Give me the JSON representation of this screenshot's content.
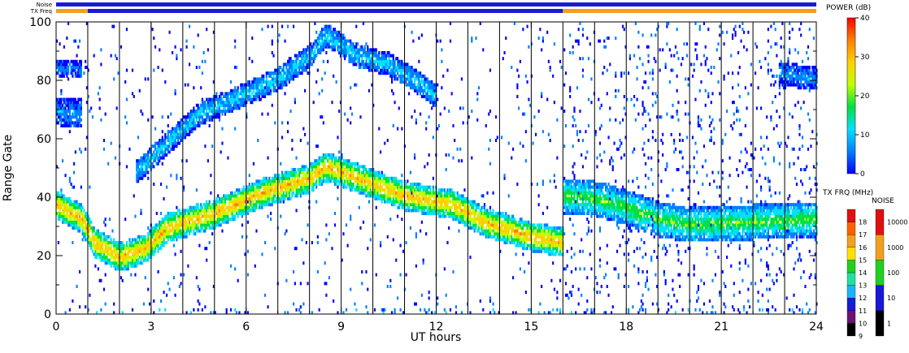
{
  "header_bars": {
    "noise_label": "Noise",
    "txfreq_label": "TX Freq",
    "noise_segments": [
      {
        "from": 0,
        "to": 24,
        "color": "#1a1ad6"
      }
    ],
    "txfreq_segments": [
      {
        "from": 0,
        "to": 1,
        "color": "#f0a020"
      },
      {
        "from": 1,
        "to": 16,
        "color": "#1a1ad6"
      },
      {
        "from": 16,
        "to": 24,
        "color": "#f0a020"
      }
    ]
  },
  "chart_data": {
    "type": "heatmap",
    "title": "",
    "xlabel": "UT hours",
    "ylabel": "Range Gate",
    "xlim": [
      0,
      24
    ],
    "ylim": [
      0,
      100
    ],
    "x_ticks": [
      "0",
      "3",
      "6",
      "9",
      "12",
      "15",
      "18",
      "21",
      "24"
    ],
    "x_tick_values": [
      0,
      3,
      6,
      9,
      12,
      15,
      18,
      21,
      24
    ],
    "y_ticks": [
      "0",
      "20",
      "40",
      "60",
      "80",
      "100"
    ],
    "y_tick_values": [
      0,
      20,
      40,
      60,
      80,
      100
    ],
    "hour_divider_lines": [
      1,
      2,
      3,
      4,
      5,
      6,
      7,
      8,
      9,
      10,
      11,
      12,
      13,
      14,
      15,
      16,
      17,
      18,
      19,
      20,
      21,
      22,
      23
    ],
    "bands": [
      {
        "name": "main",
        "points": [
          [
            0,
            37
          ],
          [
            0.8,
            32
          ],
          [
            1.2,
            24
          ],
          [
            2.0,
            19
          ],
          [
            2.8,
            22
          ],
          [
            3.5,
            29
          ],
          [
            5,
            34
          ],
          [
            6.5,
            41
          ],
          [
            8,
            46
          ],
          [
            8.5,
            50
          ],
          [
            9.5,
            46
          ],
          [
            11,
            40
          ],
          [
            12.5,
            37
          ],
          [
            13.5,
            31
          ],
          [
            15,
            26
          ],
          [
            16,
            24
          ]
        ],
        "width": 5,
        "peak": 34
      },
      {
        "name": "upper",
        "points": [
          [
            2.5,
            48
          ],
          [
            3.5,
            58
          ],
          [
            4.5,
            68
          ],
          [
            6,
            75
          ],
          [
            7,
            80
          ],
          [
            8,
            88
          ],
          [
            8.5,
            95
          ],
          [
            9.5,
            88
          ],
          [
            10.5,
            85
          ],
          [
            11.5,
            78
          ],
          [
            12,
            74
          ]
        ],
        "width": 4,
        "peak": 14
      },
      {
        "name": "early-high",
        "points": [
          [
            0,
            69
          ],
          [
            0.8,
            68
          ]
        ],
        "width": 5,
        "peak": 10
      },
      {
        "name": "early-top",
        "points": [
          [
            0,
            84
          ],
          [
            0.8,
            83
          ]
        ],
        "width": 3,
        "peak": 8
      },
      {
        "name": "post16",
        "points": [
          [
            16,
            40
          ],
          [
            17,
            39
          ],
          [
            18,
            36
          ],
          [
            19,
            32
          ],
          [
            20,
            30
          ],
          [
            22,
            31
          ],
          [
            24,
            32
          ]
        ],
        "width": 6,
        "peak": 22
      },
      {
        "name": "late-high",
        "points": [
          [
            22.8,
            82
          ],
          [
            24,
            80
          ]
        ],
        "width": 4,
        "peak": 10
      }
    ],
    "power_colorbar": {
      "label": "POWER (dB)",
      "range": [
        0,
        40
      ],
      "ticks": [
        "0",
        "10",
        "20",
        "30",
        "40"
      ],
      "tick_values": [
        0,
        10,
        20,
        30,
        40
      ],
      "stops": [
        "#0000ff",
        "#0080ff",
        "#00e0ff",
        "#00e040",
        "#c0ff00",
        "#ffd000",
        "#ff8000",
        "#ff0000"
      ]
    },
    "txfreq_colorbar": {
      "label": "TX FRQ (MHz)",
      "ticks": [
        "9",
        "10",
        "11",
        "12",
        "13",
        "14",
        "15",
        "16",
        "17",
        "18"
      ],
      "colors": [
        "#000000",
        "#701070",
        "#1a1ad6",
        "#1ab4ff",
        "#20e0a0",
        "#20d020",
        "#ffe000",
        "#f0a020",
        "#ff6000",
        "#e01010"
      ]
    },
    "noise_colorbar": {
      "label": "NOISE",
      "ticks": [
        "1",
        "10",
        "100",
        "1000",
        "10000"
      ],
      "colors": [
        "#000000",
        "#1a1ad6",
        "#20d020",
        "#f0a020",
        "#e01010"
      ]
    }
  }
}
